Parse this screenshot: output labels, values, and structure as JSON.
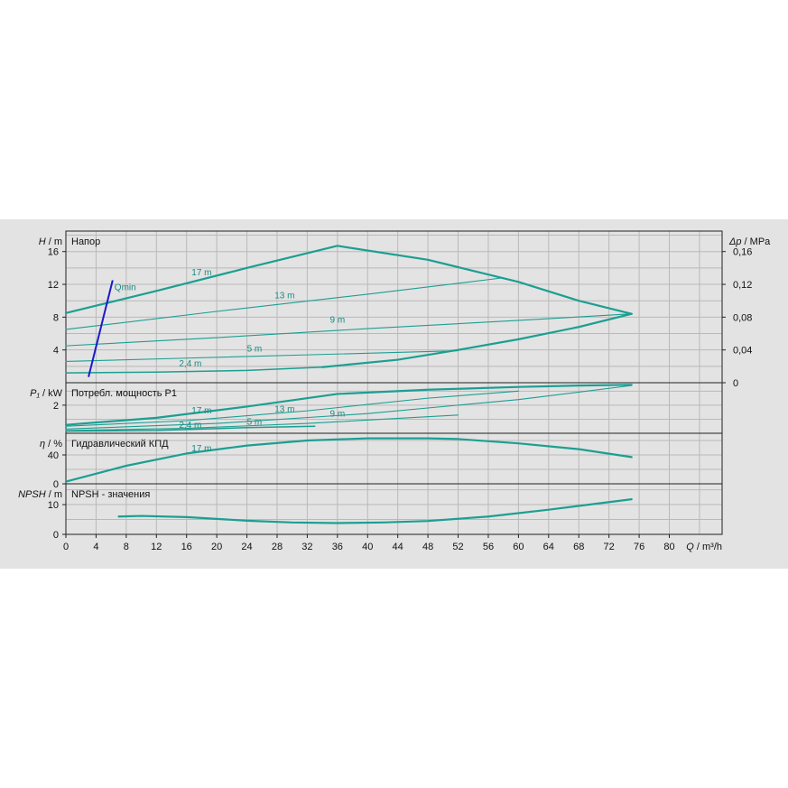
{
  "colors": {
    "curve": "#1d9e92",
    "qmin": "#1a1acc",
    "grid": "#b9b9b9",
    "panel": "#e3e3e3"
  },
  "chart_data": [
    {
      "type": "line",
      "panel": "head",
      "title": "Напор",
      "ylabel": "H / m",
      "ylabel_sym": "H",
      "ylabel_unit": " / m",
      "y2label": "Δp / MPa",
      "y2label_sym": "Δp",
      "y2label_unit": " / MPa",
      "ylim": [
        0,
        18.5
      ],
      "yticks": [
        4,
        8,
        12,
        16
      ],
      "y2ticks": [
        "0",
        "0,04",
        "0,08",
        "0,12",
        "0,16"
      ],
      "y2tick_values": [
        0,
        4,
        8,
        12,
        16
      ],
      "series": [
        {
          "name": "17 m",
          "x": [
            0,
            12,
            24,
            36,
            48,
            60,
            68,
            75
          ],
          "y": [
            8.5,
            11.2,
            14.0,
            16.7,
            15.0,
            12.3,
            10.0,
            8.4
          ],
          "width": 2.2
        },
        {
          "name": "13 m",
          "x": [
            0,
            20,
            40,
            58
          ],
          "y": [
            6.5,
            8.7,
            10.8,
            12.8
          ],
          "width": 1.1
        },
        {
          "name": "9 m",
          "x": [
            0,
            20,
            40,
            60,
            75
          ],
          "y": [
            4.5,
            5.5,
            6.6,
            7.6,
            8.4
          ],
          "width": 1.1
        },
        {
          "name": "5 m",
          "x": [
            0,
            16,
            32,
            52
          ],
          "y": [
            2.6,
            3.0,
            3.4,
            3.9
          ],
          "width": 1.1
        },
        {
          "name": "2,4 m",
          "x": [
            0,
            12,
            24,
            34
          ],
          "y": [
            1.2,
            1.3,
            1.5,
            1.9
          ],
          "width": 1.5
        },
        {
          "name": "",
          "x": [
            34,
            44,
            52,
            60,
            68,
            75
          ],
          "y": [
            1.9,
            2.8,
            4.0,
            5.3,
            6.8,
            8.4
          ],
          "width": 2.2
        }
      ],
      "labels": [
        {
          "text": "17 m",
          "x": 18,
          "y": 13.1
        },
        {
          "text": "13 m",
          "x": 29,
          "y": 10.3
        },
        {
          "text": "9 m",
          "x": 36,
          "y": 7.3
        },
        {
          "text": "5 m",
          "x": 25,
          "y": 3.8
        },
        {
          "text": "2,4 m",
          "x": 16.5,
          "y": 2.0
        }
      ],
      "qmin": {
        "label": "Qmin",
        "x": [
          3,
          6.2
        ],
        "y": [
          0.7,
          12.5
        ]
      }
    },
    {
      "type": "line",
      "panel": "power",
      "title": "Потребл. мощность P1",
      "ylabel": "P₁ / kW",
      "ylabel_sym": "P₁",
      "ylabel_unit": " / kW",
      "ylim": [
        0,
        3.6
      ],
      "yticks": [
        2
      ],
      "series": [
        {
          "name": "17 m",
          "x": [
            0,
            12,
            24,
            36,
            48,
            60,
            68,
            75
          ],
          "y": [
            0.6,
            1.1,
            1.9,
            2.8,
            3.1,
            3.3,
            3.4,
            3.45
          ],
          "width": 2.2
        },
        {
          "name": "13 m",
          "x": [
            0,
            16,
            32,
            48,
            60
          ],
          "y": [
            0.5,
            0.9,
            1.6,
            2.5,
            3.0
          ],
          "width": 1.1
        },
        {
          "name": "9 m",
          "x": [
            0,
            20,
            40,
            60,
            75
          ],
          "y": [
            0.3,
            0.7,
            1.4,
            2.4,
            3.4
          ],
          "width": 1.1
        },
        {
          "name": "5 m",
          "x": [
            0,
            16,
            32,
            52
          ],
          "y": [
            0.2,
            0.35,
            0.7,
            1.3
          ],
          "width": 1.1
        },
        {
          "name": "2,4 m",
          "x": [
            0,
            12,
            24,
            33
          ],
          "y": [
            0.15,
            0.2,
            0.4,
            0.5
          ],
          "width": 1.5
        }
      ],
      "labels": [
        {
          "text": "17 m",
          "x": 18,
          "y": 1.4
        },
        {
          "text": "13 m",
          "x": 29,
          "y": 1.5
        },
        {
          "text": "9 m",
          "x": 36,
          "y": 1.2
        },
        {
          "text": "5 m",
          "x": 25,
          "y": 0.6
        },
        {
          "text": "2,4 m",
          "x": 16.5,
          "y": 0.4
        }
      ]
    },
    {
      "type": "line",
      "panel": "efficiency",
      "title": "Гидравлический КПД",
      "ylabel": "η / %",
      "ylabel_sym": "η",
      "ylabel_unit": " / %",
      "ylim": [
        0,
        70
      ],
      "yticks": [
        0,
        40
      ],
      "series": [
        {
          "name": "17 m",
          "x": [
            0,
            8,
            16,
            24,
            32,
            40,
            48,
            52,
            60,
            68,
            75
          ],
          "y": [
            3,
            25,
            42,
            53,
            60,
            63,
            63,
            62,
            56,
            48,
            37
          ],
          "width": 2.2
        }
      ],
      "labels": [
        {
          "text": "17 m",
          "x": 18,
          "y": 45
        }
      ]
    },
    {
      "type": "line",
      "panel": "npsh",
      "title": "NPSH - значения",
      "ylabel": "NPSH / m",
      "ylabel_sym": "NPSH",
      "ylabel_unit": " / m",
      "ylim": [
        0,
        17
      ],
      "yticks": [
        0,
        10
      ],
      "series": [
        {
          "name": "",
          "x": [
            7,
            10,
            16,
            24,
            30,
            36,
            42,
            48,
            56,
            64,
            75
          ],
          "y": [
            6,
            6.2,
            5.8,
            4.6,
            4.0,
            3.8,
            4.0,
            4.5,
            6.0,
            8.3,
            11.8
          ],
          "width": 2.2
        }
      ]
    }
  ],
  "x_axis": {
    "label": "Q / m³/h",
    "label_sym": "Q",
    "label_unit": " / m³/h",
    "xlim": [
      0,
      87
    ],
    "ticks": [
      0,
      4,
      8,
      12,
      16,
      20,
      24,
      28,
      32,
      36,
      40,
      44,
      48,
      52,
      56,
      60,
      64,
      68,
      72,
      76,
      80
    ]
  }
}
